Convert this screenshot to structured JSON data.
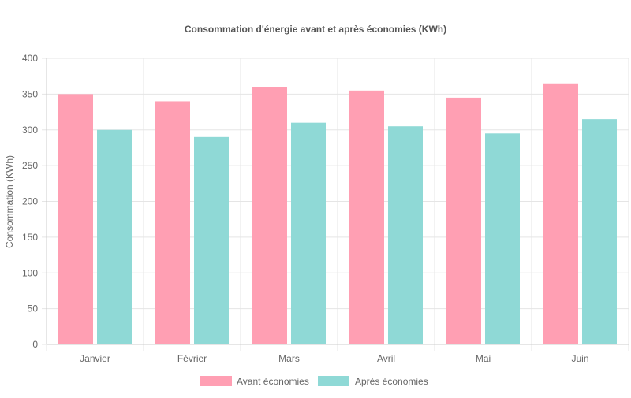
{
  "chart_data": {
    "type": "bar",
    "title": "Consommation d'énergie avant et après économies (KWh)",
    "xlabel": "",
    "ylabel": "Consommation (KWh)",
    "categories": [
      "Janvier",
      "Février",
      "Mars",
      "Avril",
      "Mai",
      "Juin"
    ],
    "ylim": [
      0,
      400
    ],
    "yticks": [
      0,
      50,
      100,
      150,
      200,
      250,
      300,
      350,
      400
    ],
    "series": [
      {
        "name": "Avant économies",
        "values": [
          350,
          340,
          360,
          355,
          345,
          365
        ],
        "color": "#ff9fb3"
      },
      {
        "name": "Après économies",
        "values": [
          300,
          290,
          310,
          305,
          295,
          315
        ],
        "color": "#8fd9d6"
      }
    ],
    "grid": true,
    "legend": "bottom"
  }
}
